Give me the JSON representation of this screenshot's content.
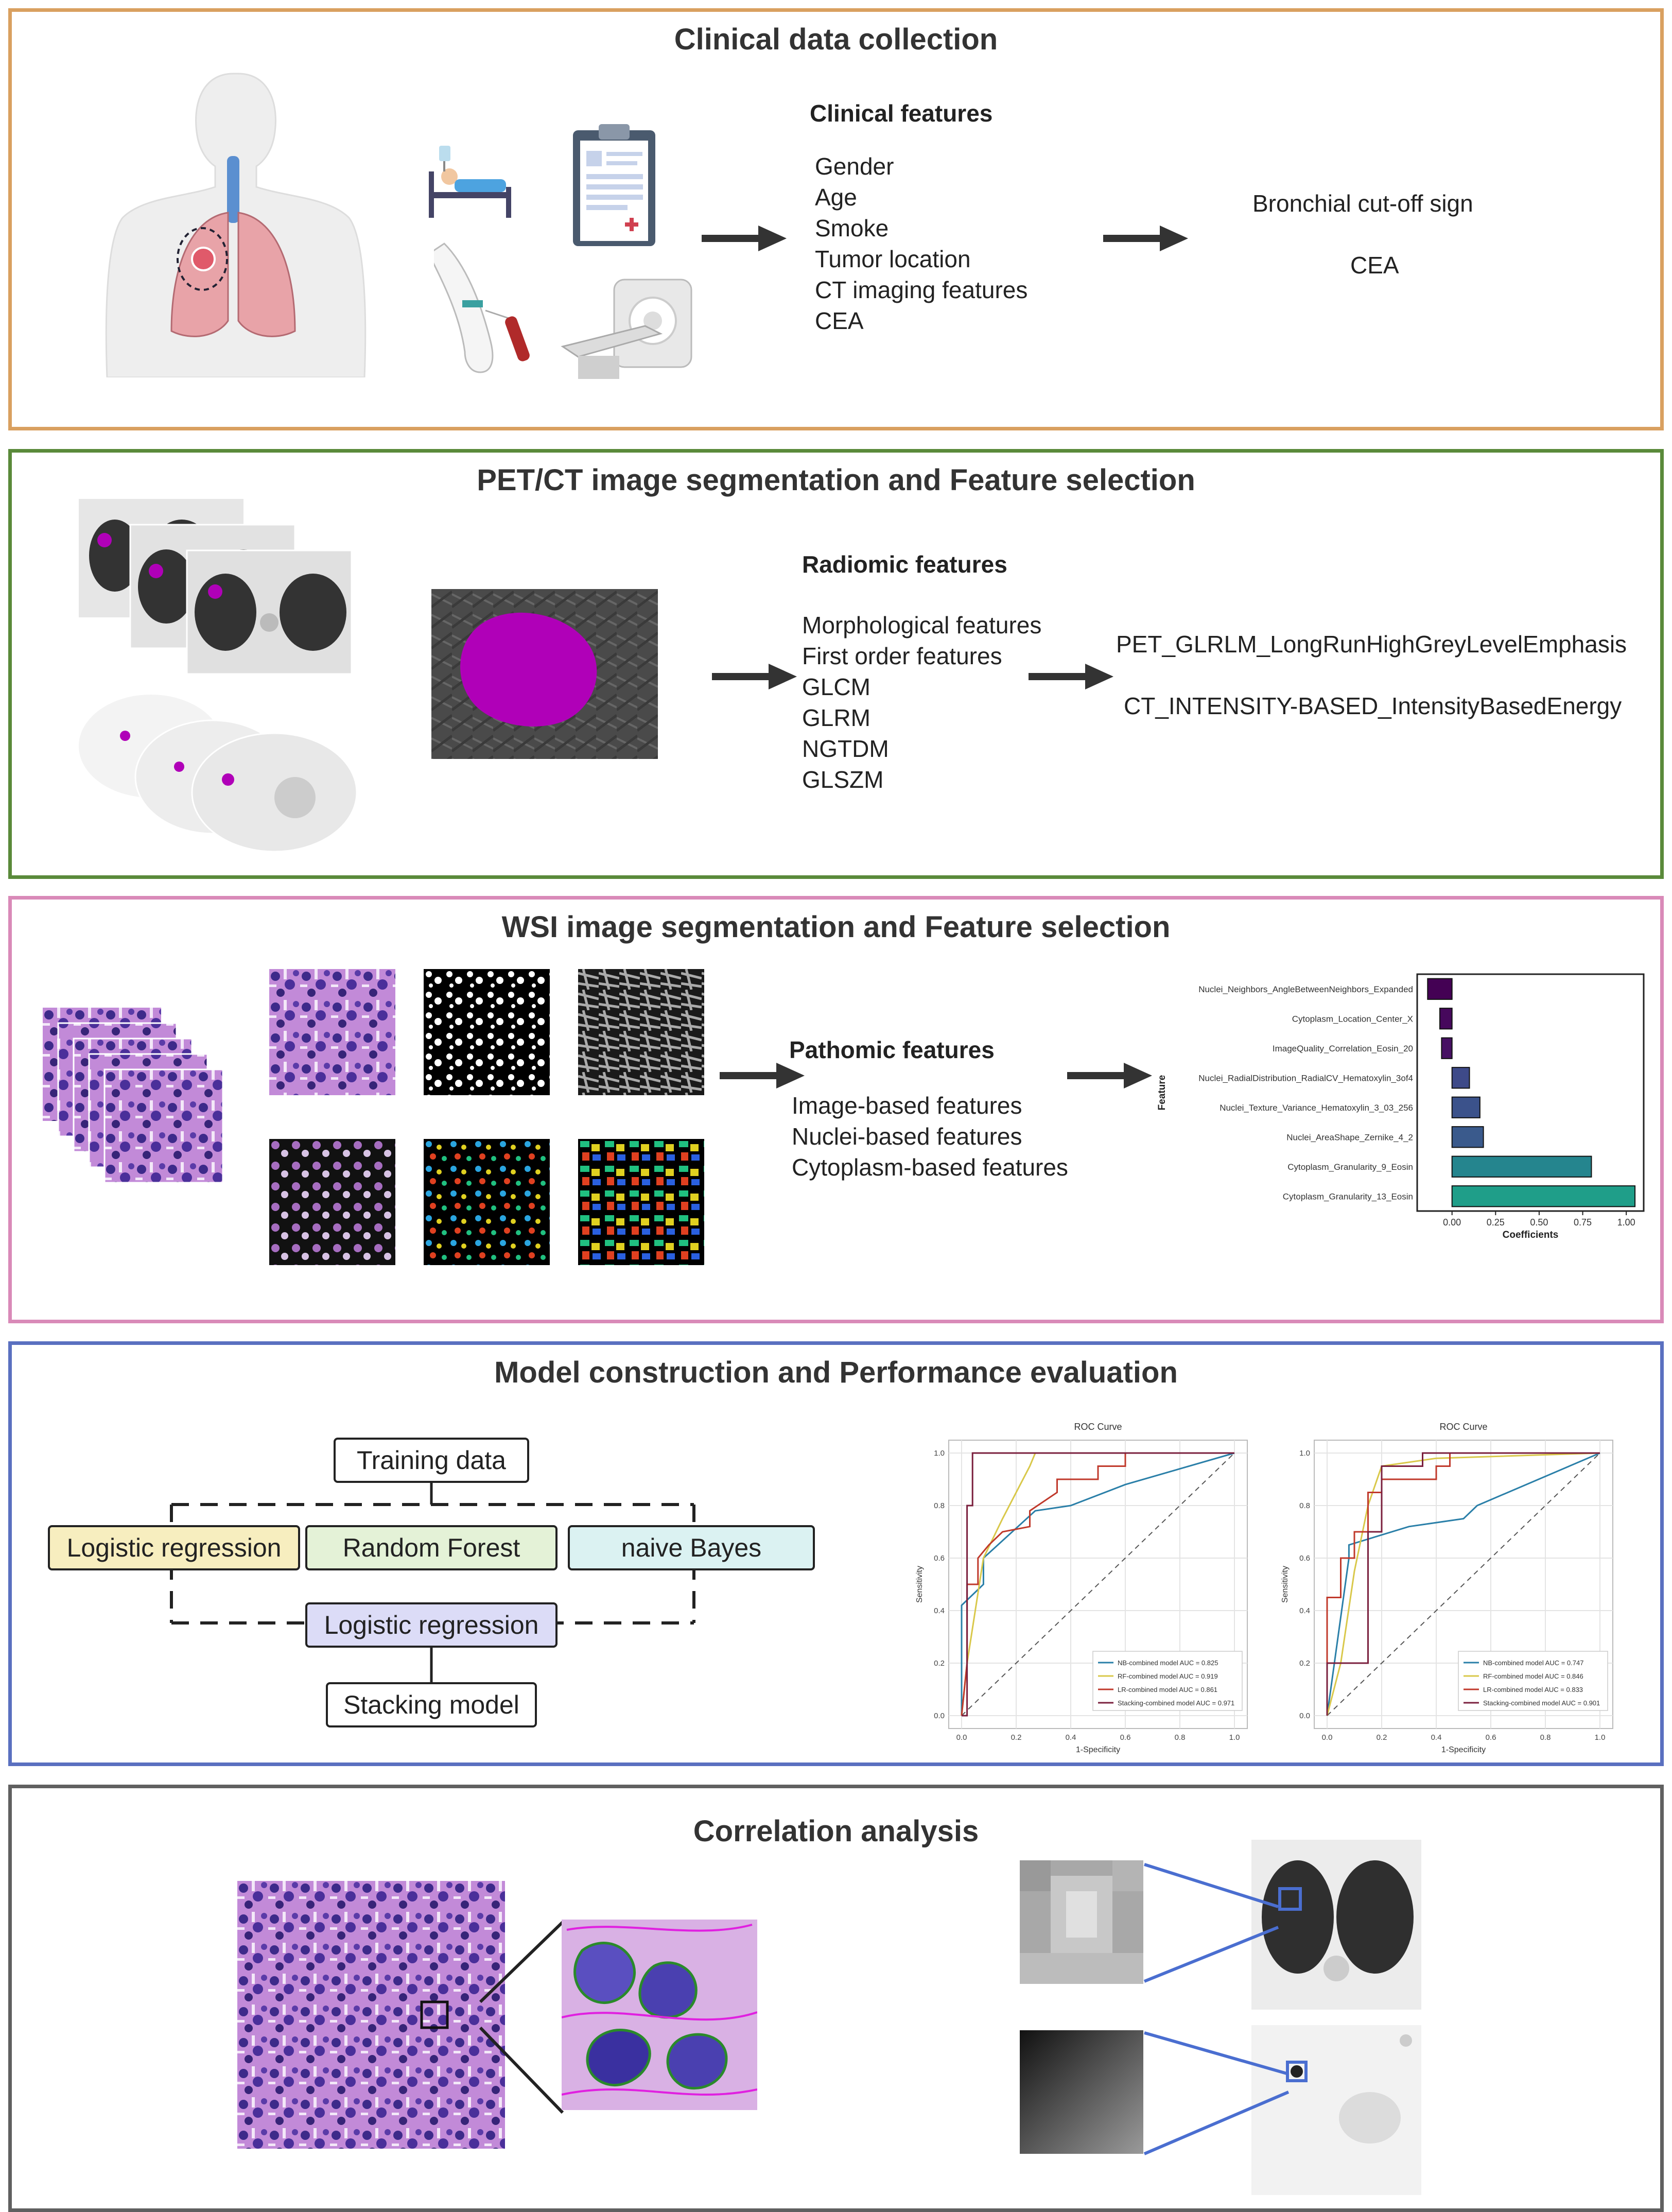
{
  "colors": {
    "panel1": "#d9a060",
    "panel2": "#5a8a3a",
    "panel3": "#d98ab8",
    "panel4": "#5a70c0",
    "panel5": "#606060",
    "magenta": "#b000b8",
    "he_purple": "#8a4fb0",
    "teal": "#21918c",
    "purple_dark": "#440154"
  },
  "panel1": {
    "title": "Clinical data collection",
    "features_header": "Clinical features",
    "features": [
      "Gender",
      "Age",
      "Smoke",
      "Tumor location",
      "CT imaging features",
      "CEA"
    ],
    "selected": [
      "Bronchial cut-off sign",
      "CEA"
    ],
    "icons": [
      "human-lungs-icon",
      "patient-bed-icon",
      "clipboard-icon",
      "blood-draw-icon",
      "ct-scanner-icon"
    ]
  },
  "panel2": {
    "title": "PET/CT image segmentation and Feature selection",
    "features_header": "Radiomic features",
    "features": [
      "Morphological features",
      "First order features",
      "GLCM",
      "GLRM",
      "NGTDM",
      "GLSZM"
    ],
    "selected": [
      "PET_GLRLM_LongRunHighGreyLevelEmphasis",
      "CT_INTENSITY-BASED_IntensityBasedEnergy"
    ]
  },
  "panel3": {
    "title": "WSI image segmentation and Feature selection",
    "features_header": "Pathomic features",
    "features": [
      "Image-based features",
      "Nuclei-based features",
      "Cytoplasm-based features"
    ]
  },
  "panel4": {
    "title": "Model construction and Performance evaluation",
    "flow": {
      "training": "Training data",
      "base_models": [
        "Logistic regression",
        "Random Forest",
        "naive Bayes"
      ],
      "meta": "Logistic regression",
      "final": "Stacking model"
    }
  },
  "panel5": {
    "title": "Correlation analysis"
  },
  "chart_data": [
    {
      "type": "bar",
      "orientation": "horizontal",
      "categories": [
        "Nuclei_Neighbors_AngleBetweenNeighbors_Expanded",
        "Cytoplasm_Location_Center_X",
        "ImageQuality_Correlation_Eosin_20",
        "Nuclei_RadialDistribution_RadialCV_Hematoxylin_3of4",
        "Nuclei_Texture_Variance_Hematoxylin_3_03_256",
        "Nuclei_AreaShape_Zernike_4_2",
        "Cytoplasm_Granularity_9_Eosin",
        "Cytoplasm_Granularity_13_Eosin"
      ],
      "values": [
        -0.14,
        -0.07,
        -0.06,
        0.1,
        0.16,
        0.18,
        0.8,
        1.05
      ],
      "xlabel": "Coefficients",
      "ylabel": "Feature",
      "xticks": [
        "0.00",
        "0.25",
        "0.50",
        "0.75",
        "1.00"
      ],
      "xlim": [
        -0.2,
        1.1
      ],
      "colors": [
        "#440154",
        "#46085c",
        "#471063",
        "#3e4a89",
        "#3b528b",
        "#3a5a8c",
        "#25858e",
        "#1f9e89"
      ]
    },
    {
      "type": "line",
      "title": "ROC Curve",
      "xlabel": "1-Specificity",
      "ylabel": "Sensitivity",
      "xticks": [
        "0.0",
        "0.2",
        "0.4",
        "0.6",
        "0.8",
        "1.0"
      ],
      "yticks": [
        "0.0",
        "0.2",
        "0.4",
        "0.6",
        "0.8",
        "1.0"
      ],
      "xlim": [
        0,
        1
      ],
      "ylim": [
        0,
        1
      ],
      "legend_position": "bottom-right",
      "series": [
        {
          "name": "NB-combined model AUC = 0.825",
          "color": "#2a7fa8",
          "x": [
            0,
            0,
            0.08,
            0.08,
            0.27,
            0.4,
            0.6,
            1
          ],
          "y": [
            0,
            0.42,
            0.5,
            0.6,
            0.78,
            0.8,
            0.88,
            1
          ]
        },
        {
          "name": "RF-combined model AUC = 0.919",
          "color": "#d9c84a",
          "x": [
            0,
            0.02,
            0.08,
            0.15,
            0.25,
            0.27,
            1
          ],
          "y": [
            0,
            0.2,
            0.6,
            0.75,
            0.95,
            1,
            1
          ]
        },
        {
          "name": "LR-combined model AUC = 0.861",
          "color": "#c0392b",
          "x": [
            0,
            0.02,
            0.02,
            0.06,
            0.06,
            0.1,
            0.15,
            0.25,
            0.25,
            0.35,
            0.35,
            0.5,
            0.5,
            0.6,
            0.6,
            0.7,
            1
          ],
          "y": [
            0,
            0.2,
            0.5,
            0.5,
            0.6,
            0.65,
            0.7,
            0.72,
            0.78,
            0.85,
            0.9,
            0.9,
            0.95,
            0.95,
            1,
            1,
            1
          ]
        },
        {
          "name": "Stacking-combined model AUC = 0.971",
          "color": "#7a1f3d",
          "x": [
            0,
            0.02,
            0.02,
            0.04,
            0.04,
            1
          ],
          "y": [
            0,
            0,
            0.8,
            0.8,
            1,
            1
          ]
        }
      ]
    },
    {
      "type": "line",
      "title": "ROC Curve",
      "xlabel": "1-Specificity",
      "ylabel": "Sensitivity",
      "xticks": [
        "0.0",
        "0.2",
        "0.4",
        "0.6",
        "0.8",
        "1.0"
      ],
      "yticks": [
        "0.0",
        "0.2",
        "0.4",
        "0.6",
        "0.8",
        "1.0"
      ],
      "xlim": [
        0,
        1
      ],
      "ylim": [
        0,
        1
      ],
      "legend_position": "bottom-right",
      "series": [
        {
          "name": "NB-combined model AUC = 0.747",
          "color": "#2a7fa8",
          "x": [
            0,
            0.08,
            0.08,
            0.3,
            0.5,
            0.55,
            1
          ],
          "y": [
            0,
            0.6,
            0.65,
            0.72,
            0.75,
            0.8,
            1
          ]
        },
        {
          "name": "RF-combined model AUC = 0.846",
          "color": "#d9c84a",
          "x": [
            0,
            0.05,
            0.1,
            0.15,
            0.2,
            0.4,
            1
          ],
          "y": [
            0,
            0.2,
            0.55,
            0.8,
            0.95,
            0.98,
            1
          ]
        },
        {
          "name": "LR-combined model AUC = 0.833",
          "color": "#c0392b",
          "x": [
            0,
            0,
            0.05,
            0.05,
            0.1,
            0.1,
            0.15,
            0.15,
            0.2,
            0.2,
            0.4,
            0.4,
            0.45,
            0.45,
            1
          ],
          "y": [
            0,
            0.45,
            0.45,
            0.6,
            0.6,
            0.7,
            0.7,
            0.85,
            0.85,
            0.9,
            0.9,
            0.95,
            0.95,
            1,
            1
          ]
        },
        {
          "name": "Stacking-combined model AUC = 0.901",
          "color": "#7a1f3d",
          "x": [
            0,
            0,
            0.15,
            0.15,
            0.2,
            0.2,
            0.35,
            0.35,
            1
          ],
          "y": [
            0,
            0.2,
            0.2,
            0.7,
            0.7,
            0.95,
            0.95,
            1,
            1
          ]
        }
      ]
    }
  ]
}
